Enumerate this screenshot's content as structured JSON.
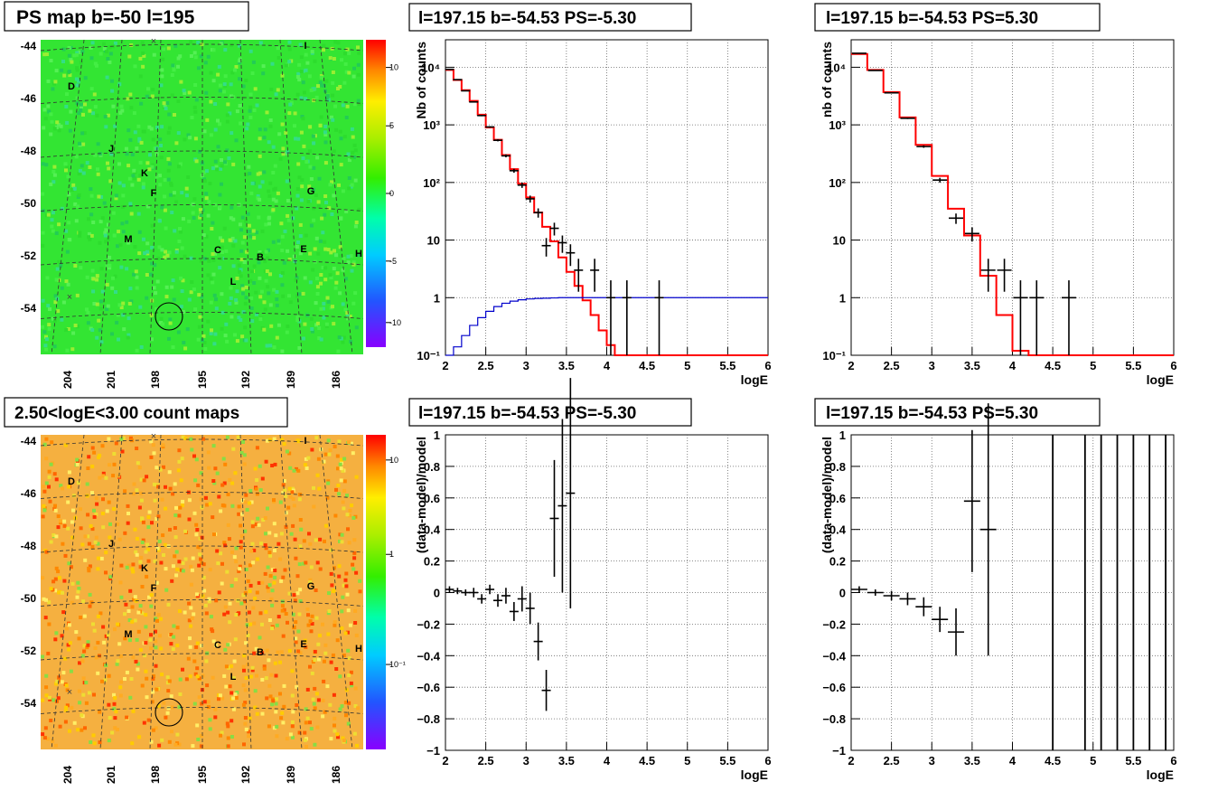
{
  "panels": {
    "map_top": {
      "title": "PS map b=-50 l=195",
      "b_ticks": [
        "-44",
        "-46",
        "-48",
        "-50",
        "-52",
        "-54"
      ],
      "l_ticks": [
        "204",
        "201",
        "198",
        "195",
        "192",
        "189",
        "186"
      ],
      "colorbar_ticks": [
        "10",
        "5",
        "0",
        "-5",
        "-10"
      ],
      "source_labels": [
        "I",
        "D",
        "J",
        "K",
        "F",
        "G",
        "M",
        "C",
        "B",
        "E",
        "H",
        "L"
      ]
    },
    "map_bottom": {
      "title": "2.50<logE<3.00 count maps",
      "b_ticks": [
        "-44",
        "-46",
        "-48",
        "-50",
        "-52",
        "-54"
      ],
      "l_ticks": [
        "204",
        "201",
        "198",
        "195",
        "192",
        "189",
        "186"
      ],
      "colorbar_ticks": [
        "10",
        "1",
        "10⁻¹"
      ],
      "source_labels": [
        "I",
        "D",
        "J",
        "K",
        "F",
        "G",
        "M",
        "C",
        "B",
        "E",
        "H",
        "L"
      ]
    },
    "counts_left": {
      "title": "l=197.15 b=-54.53 PS=-5.30"
    },
    "counts_right": {
      "title": "l=197.15 b=-54.53 PS=5.30"
    },
    "resid_left": {
      "title": "l=197.15 b=-54.53 PS=-5.30"
    },
    "resid_right": {
      "title": "l=197.15 b=-54.53 PS=5.30"
    }
  },
  "colors": {
    "model": "#ff0000",
    "background_model": "#0000cc",
    "data": "#000000"
  },
  "chart_data": [
    {
      "type": "line",
      "title": "l=197.15 b=-54.53 PS=-5.30",
      "xlabel": "logE",
      "ylabel": "Nb of counts",
      "xlim": [
        2,
        6
      ],
      "ylim": [
        0.1,
        30000
      ],
      "log_y": true,
      "grid": true,
      "x_ticks": [
        "2",
        "2.5",
        "3",
        "3.5",
        "4",
        "4.5",
        "5",
        "5.5",
        "6"
      ],
      "y_ticks": [
        "10⁻¹",
        "1",
        "10",
        "10²",
        "10³",
        "10⁴"
      ],
      "series": [
        {
          "name": "",
          "style": "step",
          "color": "#ff0000",
          "x": [
            2,
            2.1,
            2.2,
            2.3,
            2.4,
            2.5,
            2.6,
            2.7,
            2.8,
            2.9,
            3.0,
            3.1,
            3.2,
            3.3,
            3.4,
            3.5,
            3.6,
            3.7,
            3.8,
            3.9,
            4.0,
            4.1,
            4.2,
            4.3,
            6.0
          ],
          "y": [
            9000,
            6000,
            4000,
            2600,
            1500,
            900,
            550,
            300,
            170,
            95,
            55,
            30,
            17,
            9.5,
            5,
            2.8,
            1.6,
            0.9,
            0.5,
            0.27,
            0.15,
            0.1,
            0.1,
            0.1,
            0.1
          ]
        },
        {
          "name": "",
          "style": "step",
          "color": "#0000cc",
          "x": [
            2,
            2.1,
            2.2,
            2.3,
            2.4,
            2.5,
            2.6,
            2.7,
            2.8,
            2.9,
            3.0,
            3.1,
            3.2,
            3.3,
            3.4,
            3.5,
            6.0
          ],
          "y": [
            0.1,
            0.14,
            0.22,
            0.33,
            0.45,
            0.58,
            0.7,
            0.8,
            0.87,
            0.92,
            0.95,
            0.97,
            0.98,
            0.99,
            1.0,
            1.0,
            1.0
          ]
        },
        {
          "name": "",
          "style": "points",
          "color": "#000000",
          "x": [
            2.05,
            2.15,
            2.25,
            2.35,
            2.45,
            2.55,
            2.65,
            2.75,
            2.85,
            2.95,
            3.05,
            3.15,
            3.25,
            3.35,
            3.45,
            3.55,
            3.65,
            3.85,
            4.05,
            4.25,
            4.65
          ],
          "y": [
            9200,
            6100,
            3900,
            2500,
            1450,
            920,
            540,
            290,
            160,
            90,
            52,
            30,
            8,
            16,
            9,
            6,
            3,
            3,
            1,
            1,
            1
          ]
        }
      ]
    },
    {
      "type": "line",
      "title": "l=197.15 b=-54.53 PS=5.30",
      "xlabel": "logE",
      "ylabel": "nb of counts",
      "xlim": [
        2,
        6
      ],
      "ylim": [
        0.1,
        30000
      ],
      "log_y": true,
      "grid": true,
      "x_ticks": [
        "2",
        "2.5",
        "3",
        "3.5",
        "4",
        "4.5",
        "5",
        "5.5",
        "6"
      ],
      "y_ticks": [
        "10⁻¹",
        "1",
        "10",
        "10²",
        "10³",
        "10⁴"
      ],
      "series": [
        {
          "name": "",
          "style": "step",
          "color": "#ff0000",
          "x": [
            2,
            2.2,
            2.4,
            2.6,
            2.8,
            3.0,
            3.2,
            3.4,
            3.6,
            3.8,
            4.0,
            4.2,
            6.0
          ],
          "y": [
            17000,
            9000,
            3700,
            1350,
            450,
            130,
            35,
            12,
            2.4,
            0.5,
            0.12,
            0.1,
            0.1
          ]
        },
        {
          "name": "",
          "style": "points",
          "color": "#000000",
          "x": [
            2.1,
            2.3,
            2.5,
            2.7,
            2.9,
            3.1,
            3.3,
            3.5,
            3.7,
            3.9,
            4.1,
            4.3,
            4.7
          ],
          "y": [
            17500,
            8800,
            3600,
            1300,
            420,
            110,
            24,
            13,
            3,
            3,
            1,
            1,
            1
          ]
        }
      ]
    },
    {
      "type": "scatter",
      "title": "l=197.15 b=-54.53 PS=-5.30",
      "xlabel": "logE",
      "ylabel": "(data-model)/model",
      "xlim": [
        2,
        6
      ],
      "ylim": [
        -1,
        1
      ],
      "grid": true,
      "x_ticks": [
        "2",
        "2.5",
        "3",
        "3.5",
        "4",
        "4.5",
        "5",
        "5.5",
        "6"
      ],
      "y_ticks": [
        "−1",
        "−0.8",
        "−0.6",
        "−0.4",
        "−0.2",
        "0",
        "0.2",
        "0.4",
        "0.6",
        "0.8",
        "1"
      ],
      "series": [
        {
          "name": "",
          "style": "points",
          "color": "#000000",
          "x": [
            2.05,
            2.15,
            2.25,
            2.35,
            2.45,
            2.55,
            2.65,
            2.75,
            2.85,
            2.95,
            3.05,
            3.15,
            3.25,
            3.35,
            3.45,
            3.55
          ],
          "y": [
            0.02,
            0.01,
            0.0,
            0.0,
            -0.04,
            0.02,
            -0.05,
            -0.02,
            -0.12,
            -0.04,
            -0.1,
            -0.31,
            -0.62,
            0.47,
            0.55,
            0.63
          ],
          "yerr": [
            0.02,
            0.02,
            0.02,
            0.03,
            0.03,
            0.03,
            0.04,
            0.05,
            0.06,
            0.08,
            0.1,
            0.12,
            0.13,
            0.37,
            0.55,
            0.73
          ]
        }
      ]
    },
    {
      "type": "scatter",
      "title": "l=197.15 b=-54.53 PS=5.30",
      "xlabel": "logE",
      "ylabel": "(data-model)/model",
      "xlim": [
        2,
        6
      ],
      "ylim": [
        -1,
        1
      ],
      "grid": true,
      "x_ticks": [
        "2",
        "2.5",
        "3",
        "3.5",
        "4",
        "4.5",
        "5",
        "5.5",
        "6"
      ],
      "y_ticks": [
        "−1",
        "−0.8",
        "−0.6",
        "−0.4",
        "−0.2",
        "0",
        "0.2",
        "0.4",
        "0.6",
        "0.8",
        "1"
      ],
      "series": [
        {
          "name": "",
          "style": "points",
          "color": "#000000",
          "x": [
            2.1,
            2.3,
            2.5,
            2.7,
            2.9,
            3.1,
            3.3,
            3.5,
            3.7
          ],
          "y": [
            0.02,
            0.0,
            -0.02,
            -0.04,
            -0.09,
            -0.17,
            -0.25,
            0.58,
            0.4
          ],
          "yerr": [
            0.02,
            0.02,
            0.03,
            0.04,
            0.06,
            0.08,
            0.15,
            0.45,
            0.8
          ]
        },
        {
          "name": "",
          "style": "vlines",
          "color": "#000000",
          "x": [
            4.5,
            4.9,
            5.1,
            5.3,
            5.5,
            5.7,
            5.9
          ]
        }
      ]
    }
  ]
}
